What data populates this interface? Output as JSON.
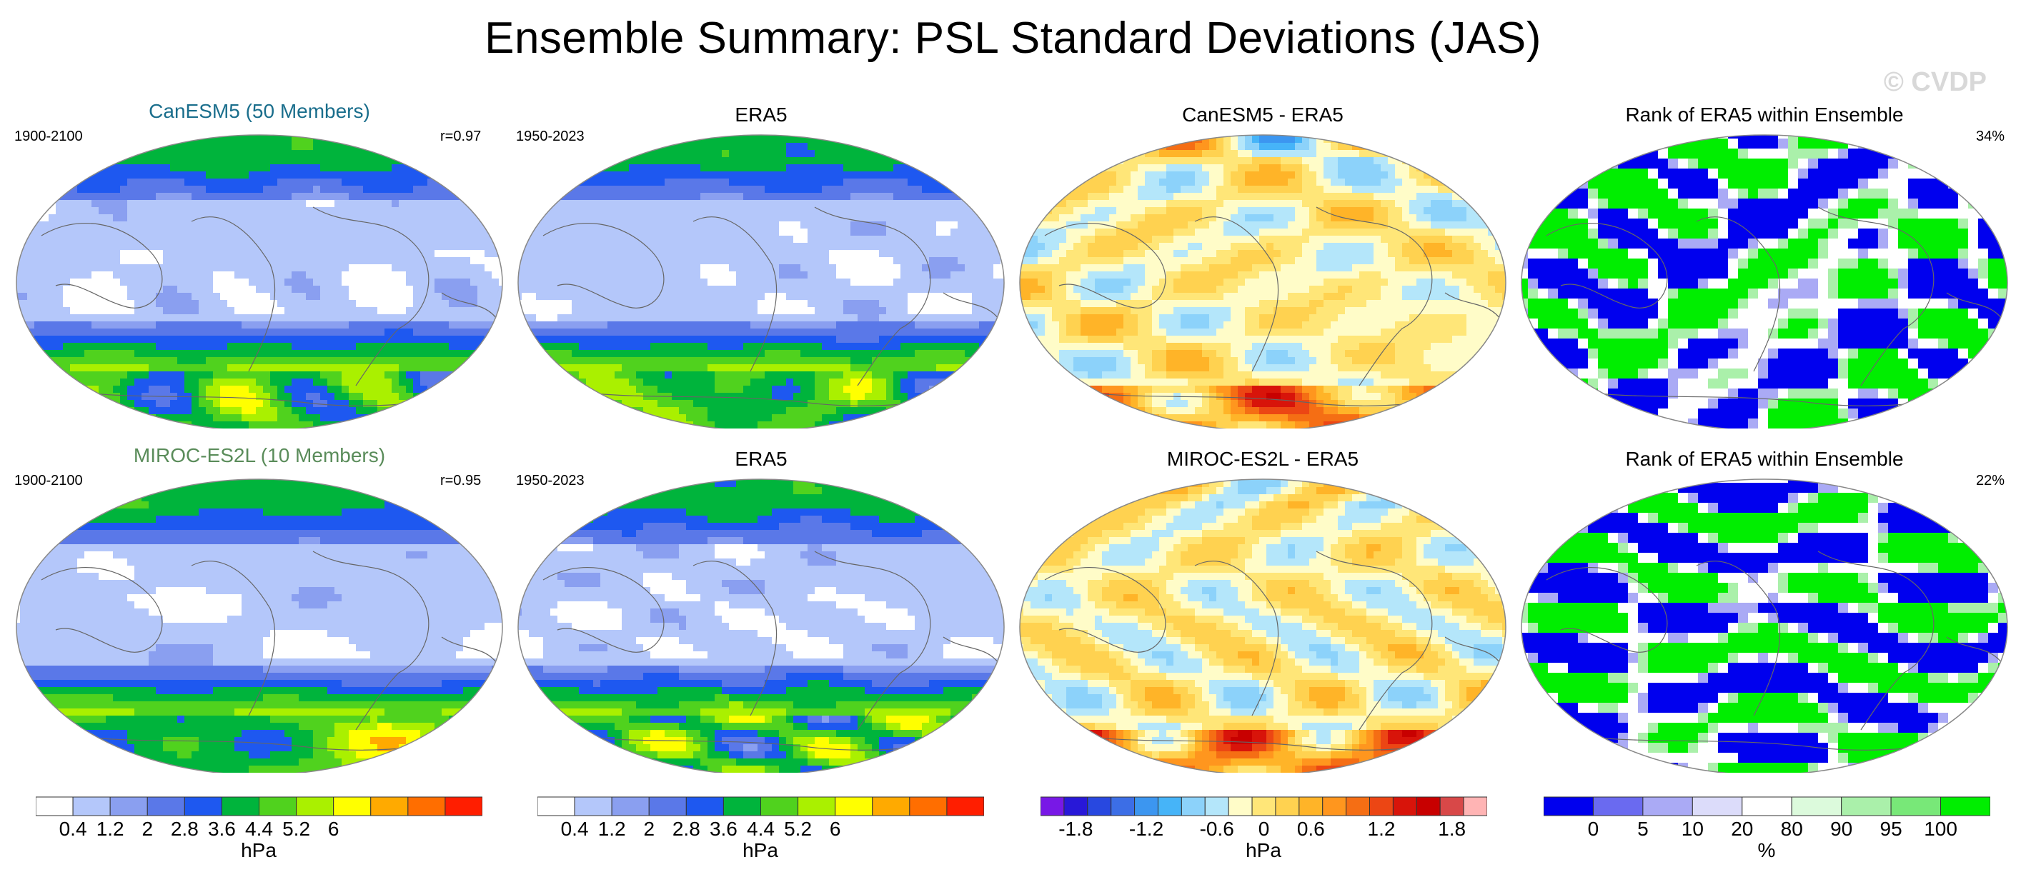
{
  "page": {
    "title": "Ensemble Summary: PSL Standard Deviations (JAS)",
    "watermark": "© CVDP"
  },
  "colors": {
    "std": [
      "#ffffff",
      "#b4c7fa",
      "#8a9ff0",
      "#5a78e8",
      "#1e58f0",
      "#00b43c",
      "#50d21e",
      "#aaf000",
      "#ffff00",
      "#ffaa00",
      "#ff6e00",
      "#ff1e00"
    ],
    "diff": [
      "#7818e6",
      "#2818d8",
      "#2848e0",
      "#3c6ee6",
      "#3c96f0",
      "#46b4f8",
      "#8cd2fa",
      "#b4e6fa",
      "#fffcc8",
      "#ffe678",
      "#ffd250",
      "#ffb428",
      "#ff961e",
      "#f56e14",
      "#ec4614",
      "#d8140a",
      "#c80000",
      "#d84848",
      "#ffb4b4"
    ],
    "rank": [
      "#0000ee",
      "#6a6af0",
      "#aaaaf5",
      "#dcdcfa",
      "#ffffff",
      "#dcfadc",
      "#aaf0aa",
      "#78e878",
      "#00ee00"
    ]
  },
  "chart_data": [
    {
      "type": "heatmap",
      "title": "CanESM5 (50 Members)",
      "title_color": "#1a6e8c",
      "left_label": "1900-2100",
      "right_label": "r=0.97",
      "field": "model_std",
      "seed": 11
    },
    {
      "type": "heatmap",
      "title": "ERA5",
      "left_label": "1950-2023",
      "right_label": "",
      "field": "obs_std",
      "seed": 23
    },
    {
      "type": "heatmap",
      "title": "CanESM5 - ERA5",
      "left_label": "",
      "right_label": "",
      "field": "diff",
      "seed": 37
    },
    {
      "type": "heatmap",
      "title": "Rank of ERA5 within Ensemble",
      "left_label": "",
      "right_label": "34%",
      "field": "rank",
      "seed": 41
    },
    {
      "type": "heatmap",
      "title": "MIROC-ES2L (10 Members)",
      "title_color": "#5a8c5a",
      "left_label": "1900-2100",
      "right_label": "r=0.95",
      "field": "model_std",
      "seed": 53
    },
    {
      "type": "heatmap",
      "title": "ERA5",
      "left_label": "1950-2023",
      "right_label": "",
      "field": "obs_std",
      "seed": 61
    },
    {
      "type": "heatmap",
      "title": "MIROC-ES2L - ERA5",
      "left_label": "",
      "right_label": "",
      "field": "diff",
      "seed": 73
    },
    {
      "type": "heatmap",
      "title": "Rank of ERA5 within Ensemble",
      "left_label": "",
      "right_label": "22%",
      "field": "rank",
      "seed": 89
    }
  ],
  "colorbars": [
    {
      "palette": "std",
      "ticks": [
        "0.4",
        "1.2",
        "2",
        "2.8",
        "3.6",
        "4.4",
        "5.2",
        "6"
      ],
      "tick_boxes": [
        1,
        3,
        5,
        7,
        9,
        11,
        13,
        15
      ],
      "n_boxes": 12,
      "unit": "hPa"
    },
    {
      "palette": "std",
      "ticks": [
        "0.4",
        "1.2",
        "2",
        "2.8",
        "3.6",
        "4.4",
        "5.2",
        "6"
      ],
      "tick_boxes": [
        1,
        3,
        5,
        7,
        9,
        11,
        13,
        15
      ],
      "n_boxes": 12,
      "unit": "hPa"
    },
    {
      "palette": "diff",
      "ticks": [
        "-1.8",
        "-1.2",
        "-0.6",
        "0",
        "0.6",
        "1.2",
        "1.8"
      ],
      "tick_boxes": [
        1.5,
        4.5,
        7.5,
        9.5,
        11.5,
        14.5,
        17.5
      ],
      "n_boxes": 19,
      "unit": "hPa"
    },
    {
      "palette": "rank",
      "ticks": [
        "0",
        "5",
        "10",
        "20",
        "80",
        "90",
        "95",
        "100"
      ],
      "tick_boxes": [
        1,
        2,
        3,
        4,
        5,
        6,
        7,
        8
      ],
      "n_boxes": 9,
      "unit": "%"
    }
  ]
}
